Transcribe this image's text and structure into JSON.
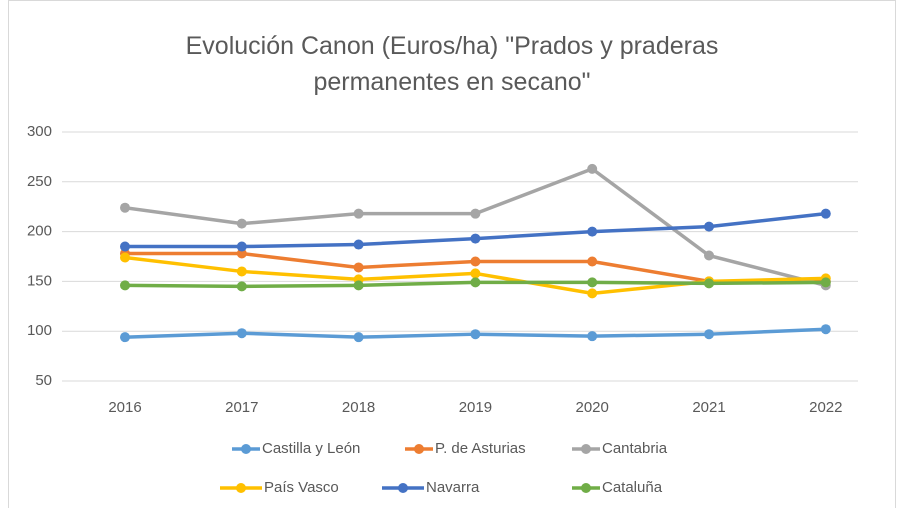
{
  "chart_data": {
    "type": "line",
    "title": "Evolución Canon (Euros/ha) \"Prados y praderas permanentes en secano\"",
    "categories": [
      "2016",
      "2017",
      "2018",
      "2019",
      "2020",
      "2021",
      "2022"
    ],
    "series": [
      {
        "name": "Castilla y León",
        "color": "#5b9bd5",
        "values": [
          94,
          98,
          94,
          97,
          95,
          97,
          102
        ]
      },
      {
        "name": "P. de Asturias",
        "color": "#ed7d31",
        "values": [
          178,
          178,
          164,
          170,
          170,
          150,
          150
        ]
      },
      {
        "name": "Cantabria",
        "color": "#a5a5a5",
        "values": [
          224,
          208,
          218,
          218,
          263,
          176,
          146
        ]
      },
      {
        "name": "País Vasco",
        "color": "#ffc000",
        "values": [
          174,
          160,
          152,
          158,
          138,
          150,
          153
        ]
      },
      {
        "name": "Navarra",
        "color": "#4472c4",
        "values": [
          185,
          185,
          187,
          193,
          200,
          205,
          218
        ]
      },
      {
        "name": "Cataluña",
        "color": "#70ad47",
        "values": [
          146,
          145,
          146,
          149,
          149,
          148,
          149
        ]
      }
    ],
    "ylim": [
      50,
      300
    ],
    "yticks": [
      50,
      100,
      150,
      200,
      250,
      300
    ],
    "grid": true,
    "legend": "bottom"
  }
}
